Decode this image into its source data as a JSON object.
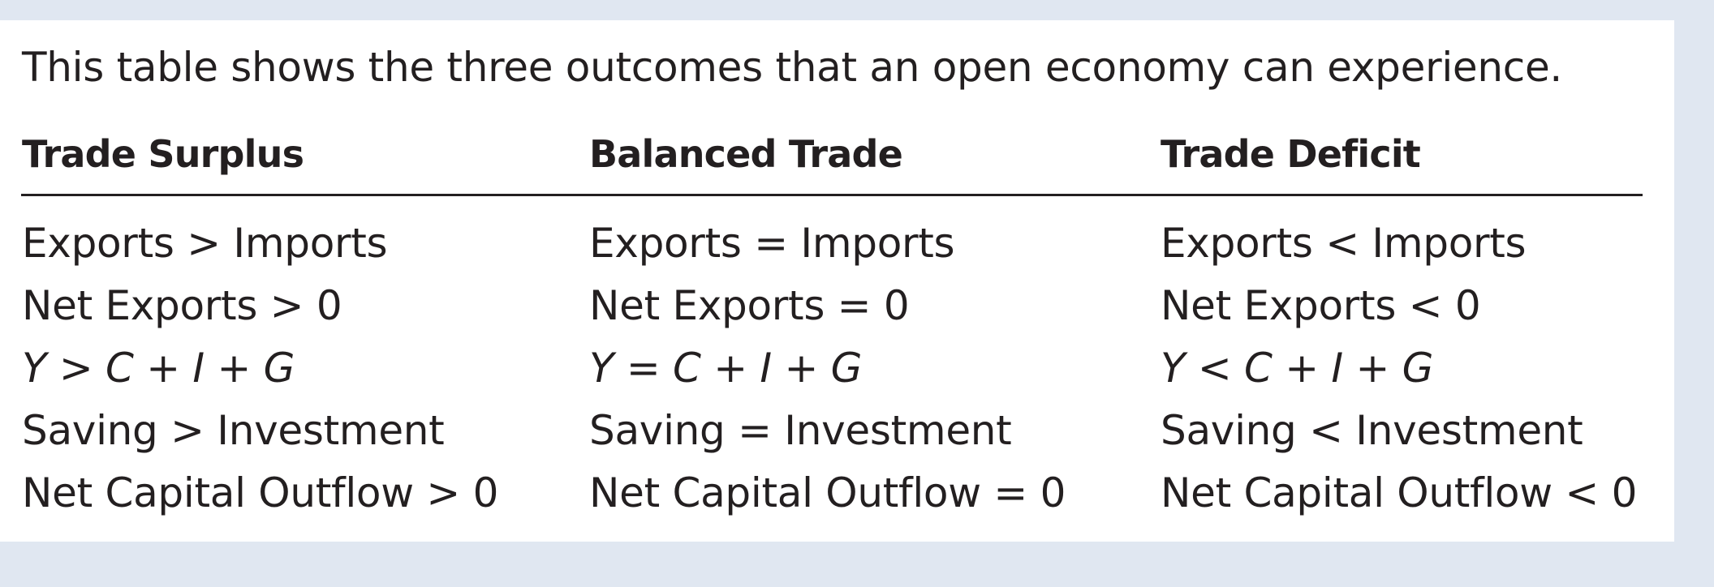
{
  "caption": "This table shows the three outcomes that an open economy can experience.",
  "columns": [
    {
      "header": "Trade Surplus",
      "rows": [
        "Exports > Imports",
        "Net Exports > 0",
        "Y > C + I + G",
        "Saving > Investment",
        "Net Capital Outflow > 0"
      ]
    },
    {
      "header": "Balanced Trade",
      "rows": [
        "Exports = Imports",
        "Net Exports = 0",
        "Y = C + I + G",
        "Saving = Investment",
        "Net Capital Outflow = 0"
      ]
    },
    {
      "header": "Trade Deficit",
      "rows": [
        "Exports < Imports",
        "Net Exports < 0",
        "Y < C + I + G",
        "Saving < Investment",
        "Net Capital Outflow < 0"
      ]
    }
  ]
}
